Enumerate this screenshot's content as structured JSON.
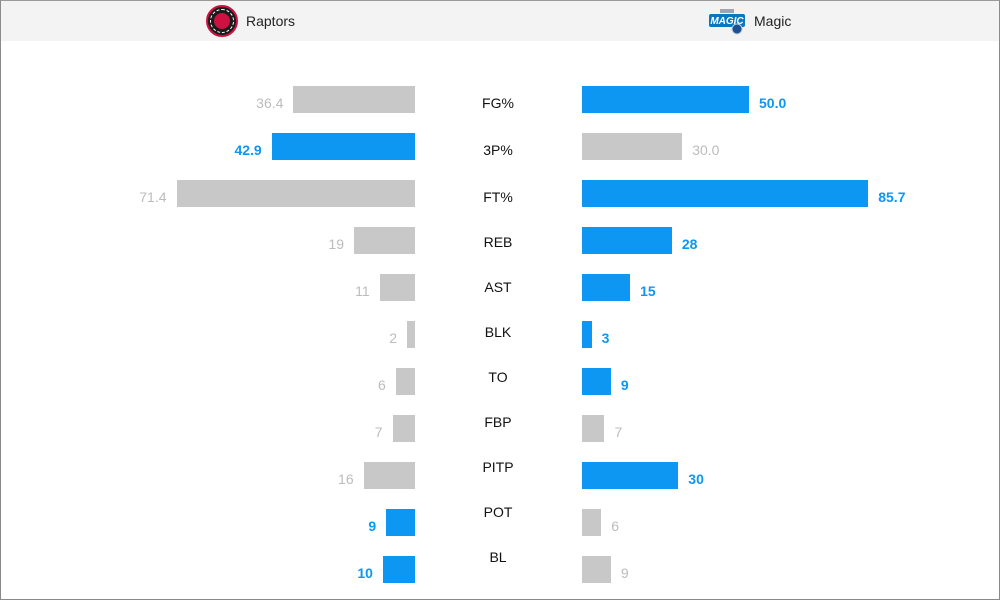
{
  "teams": {
    "away": {
      "name": "Raptors",
      "logo_icon": "raptors-logo-icon"
    },
    "home": {
      "name": "Magic",
      "logo_icon": "magic-logo-icon"
    }
  },
  "colors": {
    "leader": "#0d96f2",
    "trailer": "#c8c8c8",
    "header_bg": "#f3f3f3"
  },
  "chart_data": {
    "type": "bar",
    "orientation": "horizontal-butterfly",
    "categories": [
      "FG%",
      "3P%",
      "FT%",
      "REB",
      "AST",
      "BLK",
      "TO",
      "FBP",
      "PITP",
      "POT",
      "BL"
    ],
    "series": [
      {
        "name": "Raptors",
        "values": [
          "36.4",
          "42.9",
          "71.4",
          "19",
          "11",
          "2",
          "6",
          "7",
          "16",
          "9",
          "10"
        ]
      },
      {
        "name": "Magic",
        "values": [
          "50.0",
          "30.0",
          "85.7",
          "28",
          "15",
          "3",
          "9",
          "7",
          "30",
          "6",
          "9"
        ]
      }
    ],
    "highlight": [
      {
        "raptors": false,
        "magic": true
      },
      {
        "raptors": true,
        "magic": false
      },
      {
        "raptors": false,
        "magic": true
      },
      {
        "raptors": false,
        "magic": true
      },
      {
        "raptors": false,
        "magic": true
      },
      {
        "raptors": false,
        "magic": true
      },
      {
        "raptors": false,
        "magic": true
      },
      {
        "raptors": false,
        "magic": false
      },
      {
        "raptors": false,
        "magic": true
      },
      {
        "raptors": true,
        "magic": false
      },
      {
        "raptors": true,
        "magic": false
      }
    ],
    "title": "",
    "xlabel": "",
    "ylabel": ""
  }
}
